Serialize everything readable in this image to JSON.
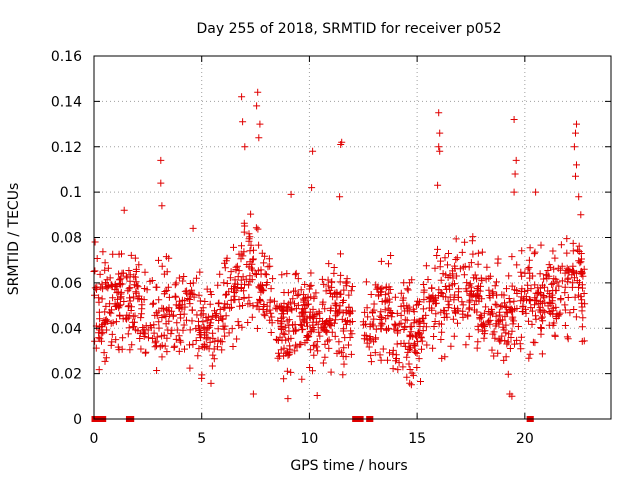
{
  "chart_data": {
    "type": "scatter",
    "title": "Day 255 of 2018, SRMTID for receiver p052",
    "xlabel": "GPS time / hours",
    "ylabel": "SRMTID / TECUs",
    "xlim": [
      0,
      24
    ],
    "ylim": [
      0,
      0.16
    ],
    "x_ticks": [
      "0",
      "5",
      "10",
      "15",
      "20"
    ],
    "x_tick_values": [
      0,
      5,
      10,
      15,
      20
    ],
    "y_ticks": [
      "0",
      "0.02",
      "0.04",
      "0.06",
      "0.08",
      "0.1",
      "0.12",
      "0.14",
      "0.16"
    ],
    "y_tick_values": [
      0,
      0.02,
      0.04,
      0.06,
      0.08,
      0.1,
      0.12,
      0.14,
      0.16
    ],
    "grid": true,
    "marker": "plus",
    "color": "#e00000",
    "trend": {
      "x": [
        0,
        0.5,
        1,
        1.5,
        2,
        2.5,
        3,
        3.5,
        4,
        4.5,
        5,
        5.5,
        6,
        6.5,
        7,
        7.5,
        8,
        8.5,
        9,
        9.5,
        10,
        10.5,
        11,
        11.5,
        12,
        12.5,
        13,
        13.5,
        14,
        14.5,
        15,
        15.5,
        16,
        16.5,
        17,
        17.5,
        18,
        18.5,
        19,
        19.5,
        20,
        20.5,
        21,
        21.5,
        22,
        22.5,
        22.8
      ],
      "y": [
        0.045,
        0.047,
        0.05,
        0.052,
        0.05,
        0.045,
        0.045,
        0.048,
        0.05,
        0.047,
        0.04,
        0.035,
        0.045,
        0.055,
        0.065,
        0.07,
        0.055,
        0.045,
        0.04,
        0.045,
        0.045,
        0.042,
        0.048,
        0.045,
        0.045,
        0.035,
        0.045,
        0.045,
        0.042,
        0.038,
        0.04,
        0.045,
        0.052,
        0.055,
        0.055,
        0.055,
        0.052,
        0.05,
        0.045,
        0.045,
        0.052,
        0.055,
        0.055,
        0.056,
        0.06,
        0.065,
        0.045
      ]
    },
    "spread": 0.015,
    "point_count": 1500,
    "peaks": [
      {
        "x": 3.1,
        "y": 0.114
      },
      {
        "x": 3.1,
        "y": 0.104
      },
      {
        "x": 3.15,
        "y": 0.094
      },
      {
        "x": 6.85,
        "y": 0.142
      },
      {
        "x": 6.9,
        "y": 0.131
      },
      {
        "x": 7.0,
        "y": 0.12
      },
      {
        "x": 7.6,
        "y": 0.144
      },
      {
        "x": 7.55,
        "y": 0.138
      },
      {
        "x": 7.7,
        "y": 0.13
      },
      {
        "x": 7.65,
        "y": 0.124
      },
      {
        "x": 10.15,
        "y": 0.118
      },
      {
        "x": 10.1,
        "y": 0.102
      },
      {
        "x": 11.5,
        "y": 0.122
      },
      {
        "x": 11.45,
        "y": 0.121
      },
      {
        "x": 11.4,
        "y": 0.098
      },
      {
        "x": 16.0,
        "y": 0.135
      },
      {
        "x": 16.05,
        "y": 0.126
      },
      {
        "x": 16.0,
        "y": 0.12
      },
      {
        "x": 16.05,
        "y": 0.118
      },
      {
        "x": 15.95,
        "y": 0.103
      },
      {
        "x": 19.5,
        "y": 0.132
      },
      {
        "x": 19.6,
        "y": 0.114
      },
      {
        "x": 19.55,
        "y": 0.108
      },
      {
        "x": 19.5,
        "y": 0.1
      },
      {
        "x": 20.5,
        "y": 0.1
      },
      {
        "x": 22.4,
        "y": 0.13
      },
      {
        "x": 22.35,
        "y": 0.126
      },
      {
        "x": 22.3,
        "y": 0.12
      },
      {
        "x": 22.4,
        "y": 0.112
      },
      {
        "x": 22.35,
        "y": 0.107
      },
      {
        "x": 22.5,
        "y": 0.098
      },
      {
        "x": 22.6,
        "y": 0.09
      },
      {
        "x": 9.15,
        "y": 0.099
      },
      {
        "x": 4.6,
        "y": 0.084
      },
      {
        "x": 1.4,
        "y": 0.092
      },
      {
        "x": 0.05,
        "y": 0.078
      },
      {
        "x": 0.0,
        "y": 0.065
      },
      {
        "x": 19.4,
        "y": 0.01
      },
      {
        "x": 19.3,
        "y": 0.011
      },
      {
        "x": 7.4,
        "y": 0.011
      },
      {
        "x": 9.0,
        "y": 0.009
      }
    ],
    "zero_marks": [
      {
        "x1": 0.0,
        "x2": 0.45
      },
      {
        "x1": 1.6,
        "x2": 1.75
      },
      {
        "x1": 12.1,
        "x2": 12.4
      },
      {
        "x1": 12.75,
        "x2": 12.85
      },
      {
        "x1": 20.2,
        "x2": 20.3
      }
    ]
  }
}
